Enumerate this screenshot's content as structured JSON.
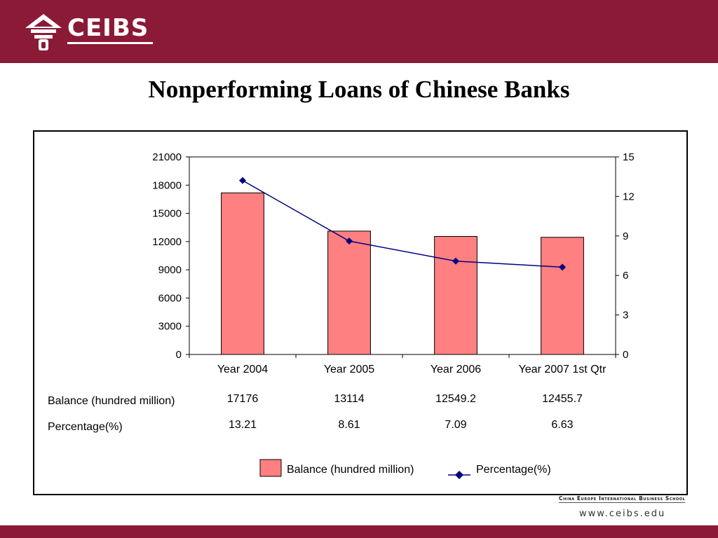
{
  "header": {
    "brand": "CEIBS",
    "background_color": "#8b1a37"
  },
  "slide": {
    "title": "Nonperforming Loans of Chinese Banks"
  },
  "footer": {
    "school_name": "China Europe International Business School",
    "url": "www.ceibs.edu"
  },
  "chart_data": {
    "type": "bar",
    "title": "",
    "categories": [
      "Year 2004",
      "Year 2005",
      "Year 2006",
      "Year 2007 1st Qtr"
    ],
    "series": [
      {
        "name": "Balance (hundred million)",
        "type": "bar",
        "axis": "left",
        "color": "#ff8080",
        "values": [
          17176,
          13114,
          12549.2,
          12455.7
        ]
      },
      {
        "name": "Percentage(%)",
        "type": "line",
        "axis": "right",
        "color": "#000080",
        "marker": "diamond",
        "values": [
          13.21,
          8.61,
          7.09,
          6.63
        ]
      }
    ],
    "y_left": {
      "ylim": [
        0,
        21000
      ],
      "ticks": [
        0,
        3000,
        6000,
        9000,
        12000,
        15000,
        18000,
        21000
      ]
    },
    "y_right": {
      "ylim": [
        0,
        15
      ],
      "ticks": [
        0,
        3,
        6,
        9,
        12,
        15
      ]
    },
    "data_table": {
      "rows": [
        {
          "label": "Balance (hundred million)",
          "values": [
            "17176",
            "13114",
            "12549.2",
            "12455.7"
          ]
        },
        {
          "label": "Percentage(%)",
          "values": [
            "13.21",
            "8.61",
            "7.09",
            "6.63"
          ]
        }
      ]
    },
    "legend": {
      "position": "bottom",
      "items": [
        "Balance (hundred million)",
        "Percentage(%)"
      ]
    },
    "grid": false
  }
}
